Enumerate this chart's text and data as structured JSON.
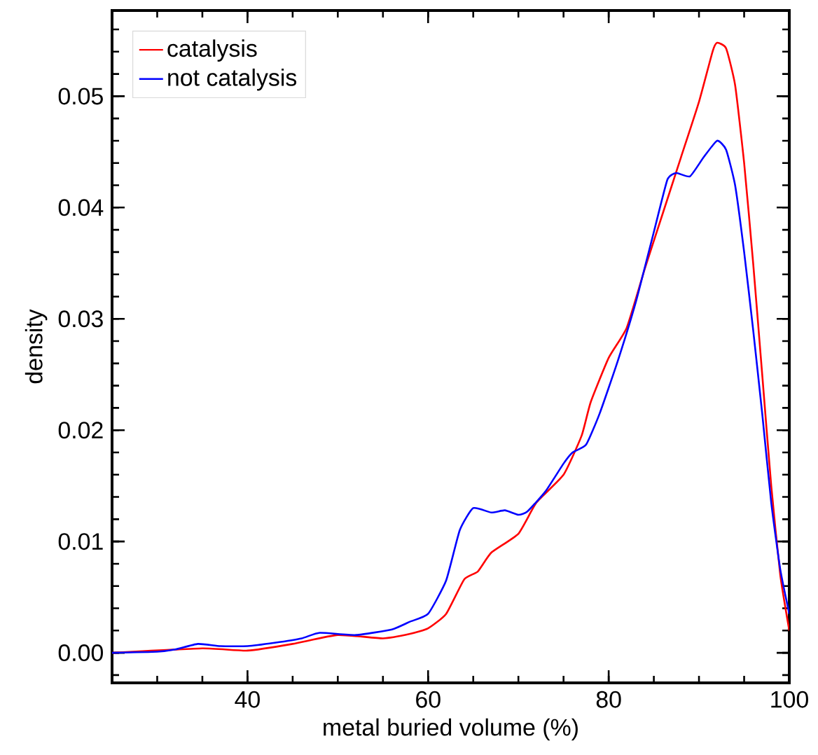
{
  "chart_data": {
    "type": "line",
    "xlabel": "metal buried volume (%)",
    "ylabel": "density",
    "xlim": [
      25,
      100
    ],
    "ylim": [
      -0.0027,
      0.0577
    ],
    "xticks": [
      40,
      60,
      80,
      100
    ],
    "yticks": [
      {
        "value": 0,
        "label": "0.00"
      },
      {
        "value": 0.01,
        "label": "0.01"
      },
      {
        "value": 0.02,
        "label": "0.02"
      },
      {
        "value": 0.03,
        "label": "0.03"
      },
      {
        "value": 0.04,
        "label": "0.04"
      },
      {
        "value": 0.05,
        "label": "0.05"
      }
    ],
    "legend": "top left",
    "series": [
      {
        "name": "catalysis",
        "color": "#ff0000",
        "x": [
          25,
          30,
          35,
          40,
          45,
          50,
          55,
          58,
          60,
          62,
          64,
          65.5,
          67,
          70,
          72,
          75,
          77,
          78,
          80,
          82,
          84,
          86,
          88,
          90,
          91.5,
          92,
          93,
          94,
          95,
          96,
          97,
          98,
          99,
          100
        ],
        "values": [
          0,
          null,
          0.0004,
          0.0002,
          0.0008,
          0.0016,
          0.0013,
          0.0017,
          0.0022,
          0.0035,
          0.0066,
          0.0073,
          0.009,
          0.0107,
          0.0135,
          0.016,
          0.0195,
          0.0225,
          0.0265,
          0.0292,
          0.0345,
          0.0395,
          0.0445,
          0.0495,
          0.054,
          0.0548,
          0.0543,
          0.051,
          0.044,
          0.035,
          0.025,
          0.015,
          0.007,
          0.002
        ]
      },
      {
        "name": "not catalysis",
        "color": "#0000ff",
        "x": [
          25,
          30,
          32,
          34.5,
          37,
          40,
          43,
          46,
          48,
          52,
          56,
          58,
          60,
          62,
          63.5,
          65,
          67,
          68.5,
          70,
          71,
          73,
          75,
          76,
          77.5,
          79,
          81,
          83,
          85,
          86.5,
          87.5,
          89,
          90.5,
          92,
          93,
          94,
          95,
          96,
          97,
          98,
          99,
          100
        ],
        "values": [
          0,
          0.0001,
          0.0003,
          0.0008,
          0.0006,
          0.0006,
          0.0009,
          0.0013,
          0.0018,
          0.0016,
          0.0021,
          0.0028,
          0.0035,
          0.0065,
          0.011,
          0.013,
          0.0126,
          0.0128,
          0.0124,
          0.0127,
          0.0145,
          0.017,
          0.018,
          0.0187,
          0.0215,
          0.0262,
          0.0315,
          0.0378,
          0.0425,
          0.0431,
          0.0428,
          0.0445,
          0.046,
          0.0452,
          0.042,
          0.036,
          0.029,
          0.0215,
          0.0135,
          0.0075,
          0.0035
        ]
      }
    ]
  }
}
